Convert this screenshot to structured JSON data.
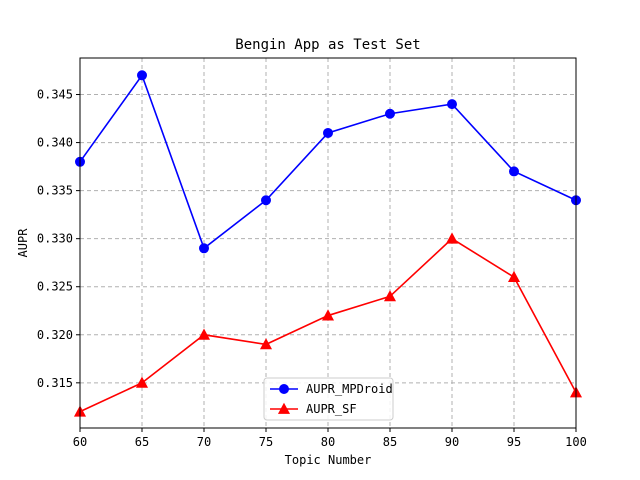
{
  "chart_data": {
    "type": "line",
    "title": "Bengin App as Test Set",
    "xlabel": "Topic Number",
    "ylabel": "AUPR",
    "x": [
      60,
      65,
      70,
      75,
      80,
      85,
      90,
      95,
      100
    ],
    "xlim": [
      60,
      100
    ],
    "ylim": [
      0.3103,
      0.3488
    ],
    "xticks": [
      60,
      65,
      70,
      75,
      80,
      85,
      90,
      95,
      100
    ],
    "yticks": [
      0.315,
      0.32,
      0.325,
      0.33,
      0.335,
      0.34,
      0.345
    ],
    "ytick_labels": [
      "0.315",
      "0.320",
      "0.325",
      "0.330",
      "0.335",
      "0.340",
      "0.345"
    ],
    "grid": true,
    "legend_position": "bottom-center",
    "series": [
      {
        "name": "AUPR_MPDroid",
        "color": "#0000ff",
        "marker": "circle",
        "values": [
          0.338,
          0.347,
          0.329,
          0.334,
          0.341,
          0.343,
          0.344,
          0.337,
          0.334
        ]
      },
      {
        "name": "AUPR_SF",
        "color": "#ff0000",
        "marker": "triangle",
        "values": [
          0.312,
          0.315,
          0.32,
          0.319,
          0.322,
          0.324,
          0.33,
          0.326,
          0.314
        ]
      }
    ]
  }
}
